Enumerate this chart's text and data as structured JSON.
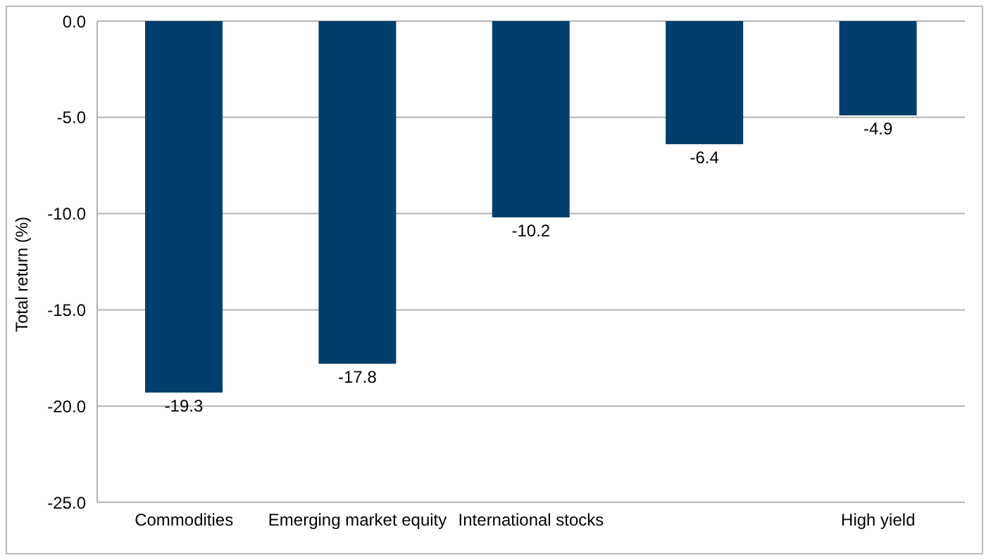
{
  "chart_data": {
    "type": "bar",
    "ylabel": "Total return (%)",
    "categories": [
      "Commodities",
      "Emerging market equity",
      "International stocks",
      null,
      "High yield"
    ],
    "values": [
      -19.3,
      -17.8,
      -10.2,
      -6.4,
      -4.9
    ],
    "color": "#003f6b",
    "ylim": [
      -25,
      0
    ],
    "yticks": [
      {
        "value": -25,
        "label": "-25.0"
      },
      {
        "value": -20,
        "label": "-20.0"
      },
      {
        "value": -15,
        "label": "-15.0"
      },
      {
        "value": -10,
        "label": "-10.0"
      },
      {
        "value": -5,
        "label": "-5.0"
      },
      {
        "value": 0,
        "label": "0.0"
      }
    ],
    "grid": "y",
    "data_labels": true
  }
}
